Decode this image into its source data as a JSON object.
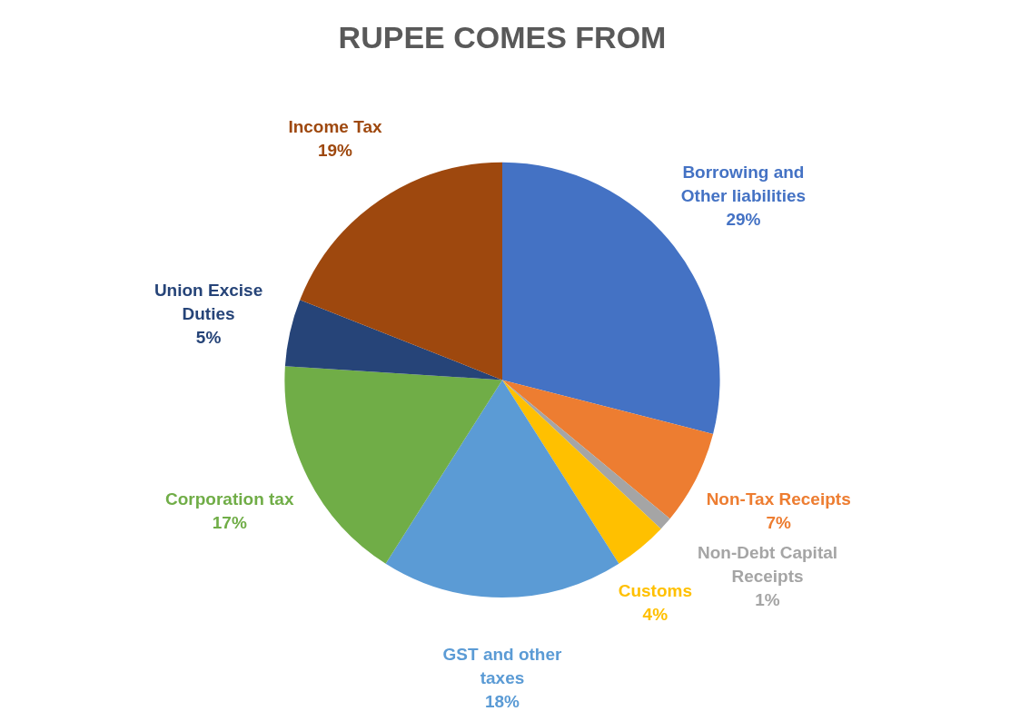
{
  "chart_data": {
    "type": "pie",
    "title": "RUPEE COMES FROM",
    "categories": [
      "Borrowing and Other liabilities",
      "Non-Tax Receipts",
      "Non-Debt Capital Receipts",
      "Customs",
      "GST and other taxes",
      "Corporation tax",
      "Union Excise Duties",
      "Income Tax"
    ],
    "values": [
      29,
      7,
      1,
      4,
      18,
      17,
      5,
      19
    ],
    "value_labels": [
      "29%",
      "7%",
      "1%",
      "4%",
      "18%",
      "17%",
      "5%",
      "19%"
    ],
    "colors": [
      "#4472c4",
      "#ed7d31",
      "#a5a5a5",
      "#ffc000",
      "#5b9bd5",
      "#70ad47",
      "#264478",
      "#9e480e"
    ]
  }
}
